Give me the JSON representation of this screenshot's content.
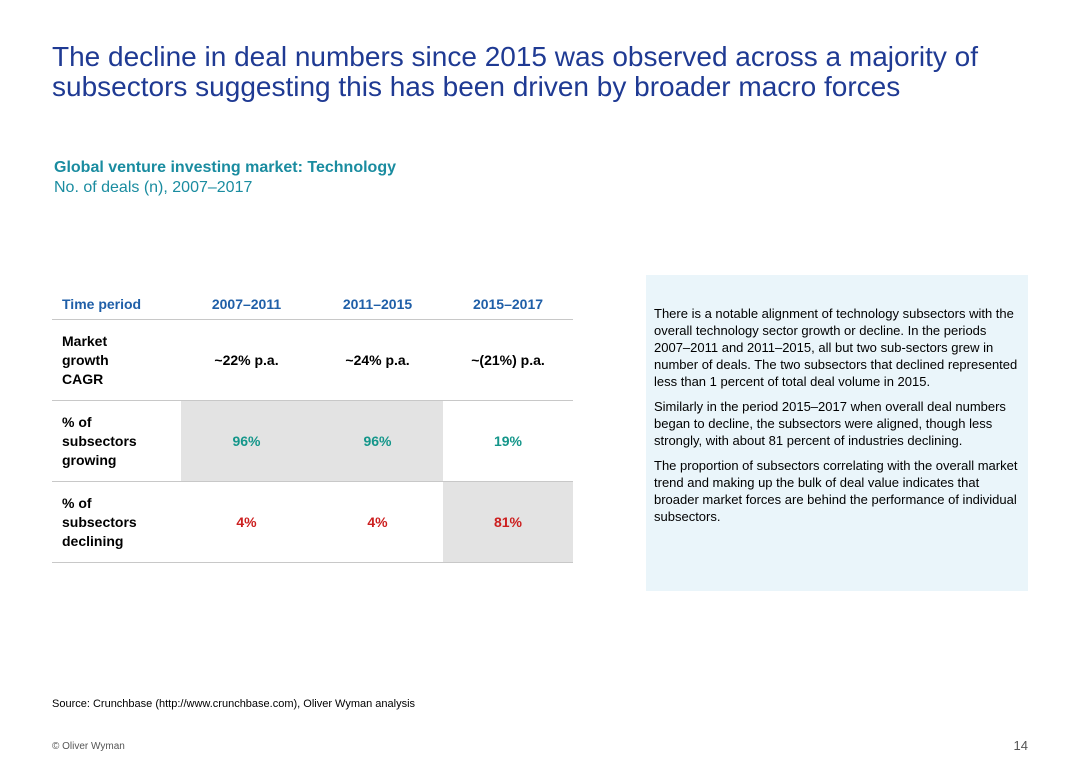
{
  "title": {
    "line1": "The decline in deal numbers since 2015 was observed across a majority of",
    "line2": "subsectors suggesting this has been driven by broader macro forces"
  },
  "subhead": {
    "line1": "Global venture investing market: Technology",
    "line2": "No. of deals (n), 2007–2017"
  },
  "table": {
    "headers": [
      "Time period",
      "2007–2011",
      "2011–2015",
      "2015–2017"
    ],
    "rows": [
      {
        "label": "Market\ngrowth\nCAGR",
        "values": [
          "~22% p.a.",
          "~24% p.a.",
          "~(21%) p.a."
        ]
      },
      {
        "label": "% of\nsubsectors\ngrowing",
        "values": [
          "96%",
          "96%",
          "19%"
        ]
      },
      {
        "label": "% of\nsubsectors\ndeclining",
        "values": [
          "4%",
          "4%",
          "81%"
        ]
      }
    ]
  },
  "colors": {
    "title": "#1f3a93",
    "header": "#1f5fa8",
    "growing": "#14968a",
    "declining": "#cc1f1f",
    "shade": "#e3e3e3",
    "callout_bg": "#eaf5fa"
  },
  "callout": {
    "p1": "There is a notable alignment of technology subsectors with the overall technology sector growth or decline. In the periods 2007–2011 and 2011–2015, all but two sub-sectors grew in number of deals. The two subsectors that declined represented less than 1 percent of total deal volume in 2015.",
    "p2": "Similarly in the period 2015–2017 when overall deal numbers began to decline, the subsectors were aligned, though less strongly, with about 81 percent of industries declining.",
    "p3": "The proportion of subsectors correlating with the overall market trend and making up the bulk of deal value indicates that broader market forces are behind the performance of individual subsectors."
  },
  "footer": {
    "source": "Source: Crunchbase (http://www.crunchbase.com), Oliver Wyman analysis",
    "copyright": "© Oliver Wyman",
    "page_number": "14"
  }
}
